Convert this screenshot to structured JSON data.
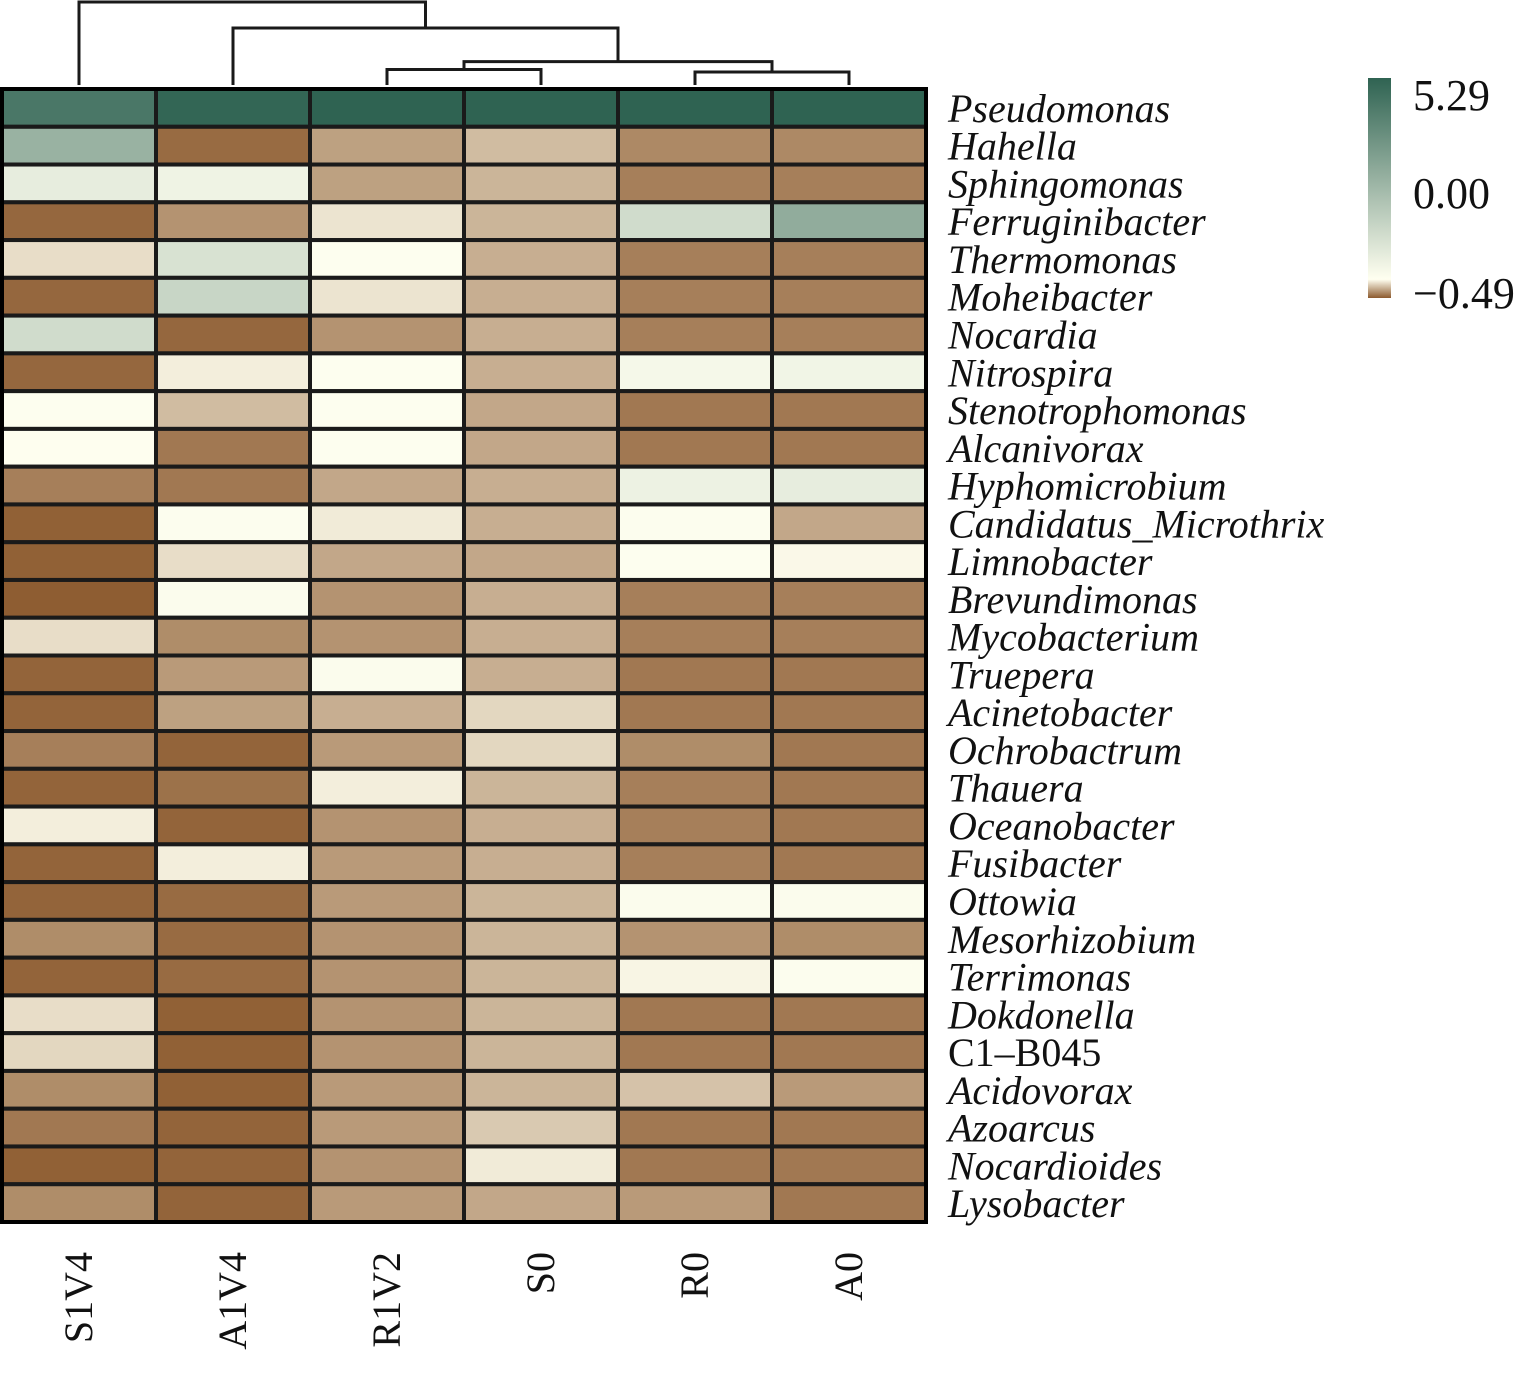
{
  "chart_data": {
    "type": "heatmap",
    "columns": [
      "S1V4",
      "A1V4",
      "R1V2",
      "S0",
      "R0",
      "A0"
    ],
    "rows": [
      {
        "label": "Pseudomonas",
        "italic": true
      },
      {
        "label": "Hahella",
        "italic": true
      },
      {
        "label": "Sphingomonas",
        "italic": true
      },
      {
        "label": "Ferruginibacter",
        "italic": true
      },
      {
        "label": "Thermomonas",
        "italic": true
      },
      {
        "label": "Moheibacter",
        "italic": true
      },
      {
        "label": "Nocardia",
        "italic": true
      },
      {
        "label": "Nitrospira",
        "italic": true
      },
      {
        "label": "Stenotrophomonas",
        "italic": true
      },
      {
        "label": "Alcanivorax",
        "italic": true
      },
      {
        "label": "Hyphomicrobium",
        "italic": true
      },
      {
        "label": "Candidatus_Microthrix",
        "italic": true
      },
      {
        "label": "Limnobacter",
        "italic": true
      },
      {
        "label": "Brevundimonas",
        "italic": true
      },
      {
        "label": "Mycobacterium",
        "italic": true
      },
      {
        "label": "Truepera",
        "italic": true
      },
      {
        "label": "Acinetobacter",
        "italic": true
      },
      {
        "label": "Ochrobactrum",
        "italic": true
      },
      {
        "label": "Thauera",
        "italic": true
      },
      {
        "label": "Oceanobacter",
        "italic": true
      },
      {
        "label": "Fusibacter",
        "italic": true
      },
      {
        "label": "Ottowia",
        "italic": true
      },
      {
        "label": "Mesorhizobium",
        "italic": true
      },
      {
        "label": "Terrimonas",
        "italic": true
      },
      {
        "label": "Dokdonella",
        "italic": true
      },
      {
        "label": "C1–B045",
        "italic": false
      },
      {
        "label": "Acidovorax",
        "italic": true
      },
      {
        "label": "Azoarcus",
        "italic": true
      },
      {
        "label": "Nocardioides",
        "italic": true
      },
      {
        "label": "Lysobacter",
        "italic": true
      }
    ],
    "values": [
      [
        4.6,
        5.2,
        5.29,
        5.29,
        5.29,
        5.29
      ],
      [
        2.6,
        -0.44,
        -0.28,
        -0.2,
        -0.35,
        -0.35
      ],
      [
        0.6,
        0.4,
        -0.28,
        -0.22,
        -0.38,
        -0.38
      ],
      [
        -0.45,
        -0.32,
        -0.08,
        -0.22,
        1.2,
        2.8
      ],
      [
        -0.1,
        1.0,
        0.05,
        -0.24,
        -0.38,
        -0.38
      ],
      [
        -0.45,
        1.4,
        -0.08,
        -0.24,
        -0.38,
        -0.38
      ],
      [
        1.2,
        -0.45,
        -0.32,
        -0.24,
        -0.38,
        -0.38
      ],
      [
        -0.45,
        -0.05,
        0.05,
        -0.24,
        0.25,
        0.35
      ],
      [
        0.05,
        -0.2,
        0.05,
        -0.26,
        -0.4,
        -0.4
      ],
      [
        0.03,
        -0.4,
        0.05,
        -0.26,
        -0.4,
        -0.4
      ],
      [
        -0.38,
        -0.4,
        -0.26,
        -0.24,
        0.45,
        0.6
      ],
      [
        -0.47,
        0.08,
        -0.06,
        -0.24,
        0.08,
        -0.26
      ],
      [
        -0.47,
        -0.1,
        -0.26,
        -0.26,
        0.05,
        -0.02
      ],
      [
        -0.48,
        0.1,
        -0.32,
        -0.24,
        -0.38,
        -0.38
      ],
      [
        -0.1,
        -0.34,
        -0.32,
        -0.24,
        -0.38,
        -0.38
      ],
      [
        -0.46,
        -0.3,
        0.1,
        -0.24,
        -0.4,
        -0.4
      ],
      [
        -0.46,
        -0.28,
        -0.24,
        -0.12,
        -0.4,
        -0.4
      ],
      [
        -0.38,
        -0.46,
        -0.3,
        -0.12,
        -0.34,
        -0.4
      ],
      [
        -0.46,
        -0.42,
        -0.05,
        -0.22,
        -0.38,
        -0.4
      ],
      [
        -0.05,
        -0.46,
        -0.32,
        -0.24,
        -0.38,
        -0.4
      ],
      [
        -0.46,
        -0.05,
        -0.3,
        -0.24,
        -0.38,
        -0.4
      ],
      [
        -0.46,
        -0.44,
        -0.3,
        -0.22,
        0.1,
        0.1
      ],
      [
        -0.34,
        -0.44,
        -0.32,
        -0.22,
        -0.32,
        -0.34
      ],
      [
        -0.46,
        -0.44,
        -0.32,
        -0.22,
        -0.03,
        0.08
      ],
      [
        -0.1,
        -0.47,
        -0.32,
        -0.22,
        -0.4,
        -0.4
      ],
      [
        -0.12,
        -0.47,
        -0.32,
        -0.22,
        -0.4,
        -0.4
      ],
      [
        -0.34,
        -0.47,
        -0.3,
        -0.22,
        -0.18,
        -0.3
      ],
      [
        -0.4,
        -0.46,
        -0.3,
        -0.16,
        -0.4,
        -0.4
      ],
      [
        -0.47,
        -0.46,
        -0.32,
        -0.06,
        -0.4,
        -0.4
      ],
      [
        -0.34,
        -0.46,
        -0.3,
        -0.26,
        -0.3,
        -0.4
      ]
    ],
    "color_scale": {
      "min": -0.49,
      "mid": 0.0,
      "max": 5.29,
      "low_color": "#8c5a2e",
      "mid_color": "#fffff0",
      "high_color": "#2f6352"
    },
    "legend": {
      "labels": [
        "5.29",
        "0.00",
        "−0.49"
      ],
      "placement": "top-right"
    },
    "column_dendrogram": {
      "leaf_order": [
        "S1V4",
        "A1V4",
        "R1V2",
        "S0",
        "R0",
        "A0"
      ],
      "merges": [
        {
          "a": "R0",
          "b": "A0",
          "height": 0.25
        },
        {
          "a": "R1V2",
          "b": "S0",
          "height": 0.3
        },
        {
          "a": "R1V2+S0",
          "b": "R0+A0",
          "height": 0.45
        },
        {
          "a": "A1V4",
          "b": "R1V2+S0+R0+A0",
          "height": 1.1
        },
        {
          "a": "S1V4",
          "b": "A1V4+R1V2+S0+R0+A0",
          "height": 1.6
        }
      ]
    }
  }
}
